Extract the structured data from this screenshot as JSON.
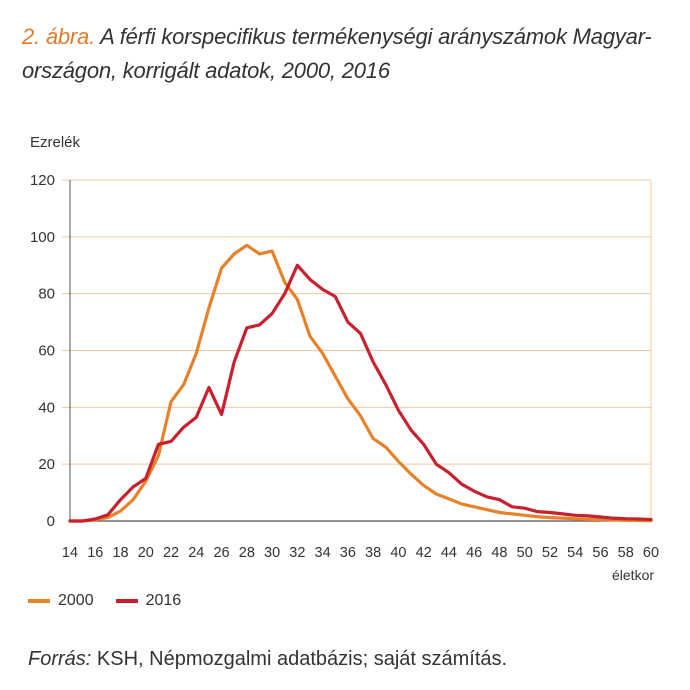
{
  "figure": {
    "label": "2. ábra.",
    "title": "A férfi korspecifikus termékenységi arányszámok Magyar-országon, korrigált adatok, 2000, 2016",
    "title_line1": "A férfi korspecifikus termékenységi arányszámok Magyar-",
    "title_line2": "országon, korrigált adatok, 2000, 2016"
  },
  "source": {
    "label": "Forrás:",
    "text": "KSH, Népmozgalmi adatbázis; saját számítás."
  },
  "colors": {
    "series_2000": "#e8822a",
    "series_2016": "#c8202f",
    "grid": "#f0c8a0",
    "axis": "#555555"
  },
  "chart_data": {
    "type": "line",
    "title": "A férfi korspecifikus termékenységi arányszámok Magyarországon, korrigált adatok, 2000, 2016",
    "ylabel": "Ezrelék",
    "xlabel": "életkor",
    "ylim": [
      0,
      120
    ],
    "xlim": [
      14,
      60
    ],
    "yticks": [
      0,
      20,
      40,
      60,
      80,
      100,
      120
    ],
    "xticks": [
      14,
      16,
      18,
      20,
      22,
      24,
      26,
      28,
      30,
      32,
      34,
      36,
      38,
      40,
      42,
      44,
      46,
      48,
      50,
      52,
      54,
      56,
      58,
      60
    ],
    "grid": "horizontal",
    "legend": "bottom-left",
    "x": [
      14,
      15,
      16,
      17,
      18,
      19,
      20,
      21,
      22,
      23,
      24,
      25,
      26,
      27,
      28,
      29,
      30,
      31,
      32,
      33,
      34,
      35,
      36,
      37,
      38,
      39,
      40,
      41,
      42,
      43,
      44,
      45,
      46,
      47,
      48,
      49,
      50,
      51,
      52,
      53,
      54,
      55,
      56,
      57,
      58,
      59,
      60
    ],
    "series": [
      {
        "name": "2000",
        "values": [
          0,
          0,
          0.4,
          1.2,
          3.5,
          7.5,
          14,
          23,
          42,
          48,
          59,
          75,
          89,
          94,
          97,
          94,
          95,
          84,
          78,
          65,
          59,
          51,
          43,
          37,
          29,
          26,
          21,
          16.5,
          12.5,
          9.5,
          7.8,
          6,
          5,
          4,
          3,
          2.5,
          2,
          1.5,
          1.2,
          1,
          0.8,
          0.6,
          0.5,
          0.4,
          0.3,
          0.2,
          0.1
        ]
      },
      {
        "name": "2016",
        "values": [
          0,
          0,
          0.7,
          2.2,
          7.5,
          12,
          15,
          27,
          28,
          33,
          36.5,
          47,
          37.5,
          56,
          68,
          69,
          73,
          80,
          90,
          85,
          81.5,
          79,
          70,
          66,
          56,
          48,
          39,
          32,
          27,
          20,
          17,
          13,
          10.5,
          8.5,
          7.5,
          5,
          4.5,
          3.3,
          3,
          2.5,
          2,
          1.8,
          1.4,
          1,
          0.8,
          0.7,
          0.5
        ]
      }
    ]
  }
}
